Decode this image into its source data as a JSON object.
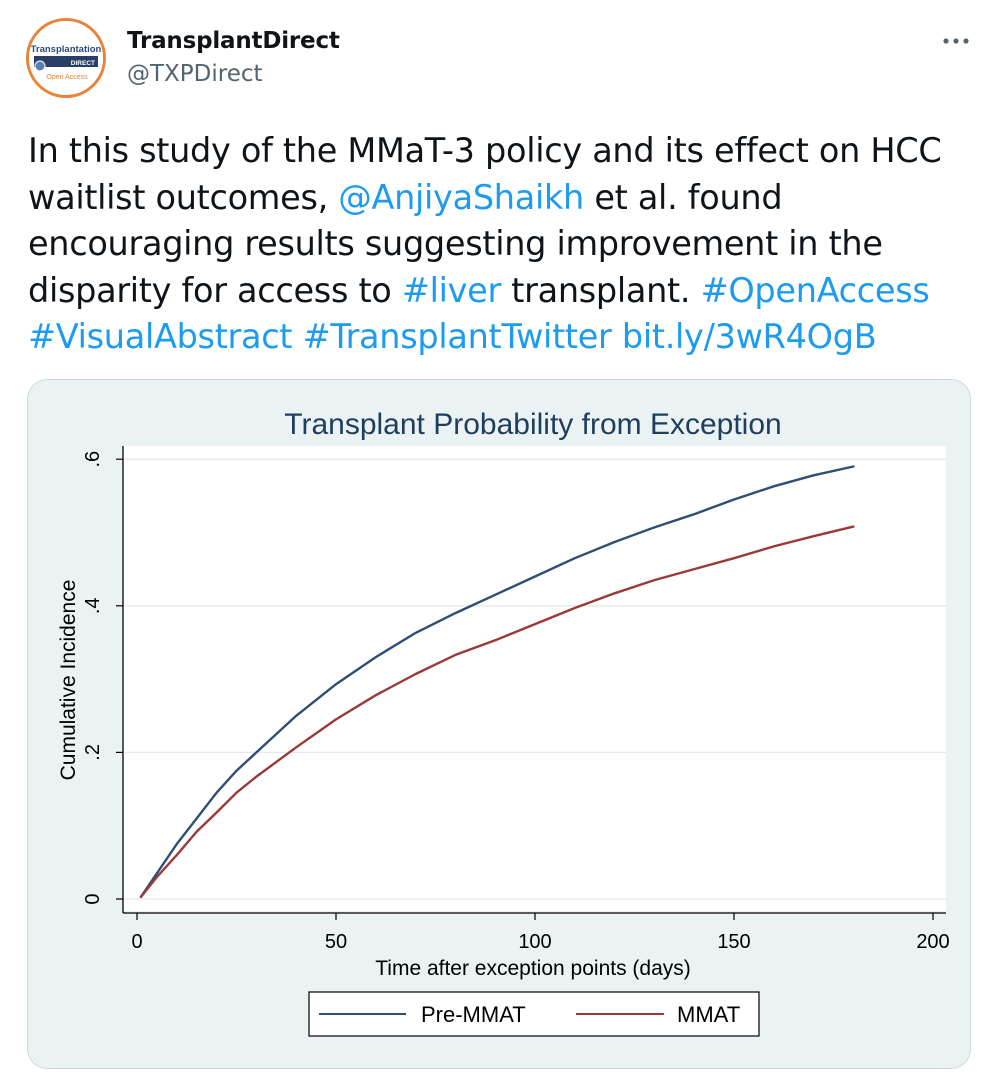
{
  "author": {
    "name": "TransplantDirect",
    "handle": "@TXPDirect",
    "avatar": {
      "line1": "Transplantation",
      "line2": "DIRECT",
      "line3": "Open Access"
    }
  },
  "tweet": {
    "text_1": "In this study of the MMaT-3 policy and its effect on HCC waitlist outcomes, ",
    "mention": "@AnjiyaShaikh",
    "text_2": " et al. found encouraging results suggesting improvement in the disparity for access to ",
    "hashtag_liver": "#liver",
    "text_3": " transplant. ",
    "hashtag_openaccess": "#OpenAccess",
    "hashtag_visualabstract": "#VisualAbstract",
    "hashtag_transplanttwitter": "#TransplantTwitter",
    "link": "bit.ly/3wR4OgB"
  },
  "colors": {
    "link": "#1d9bf0",
    "pre_mmat": "#2e4f73",
    "mmat": "#9b3838",
    "chart_title": "#1f3d5c",
    "avatar_ring": "#e8833a"
  },
  "icons": {
    "more": "more-horizontal-icon"
  },
  "chart_data": {
    "type": "line",
    "title": "Transplant Probability from Exception",
    "xlabel": "Time after exception points (days)",
    "ylabel": "Cumulative Incidence",
    "xlim": [
      0,
      200
    ],
    "ylim": [
      0,
      0.6
    ],
    "x_ticks": [
      0,
      50,
      100,
      150,
      200
    ],
    "x_tick_labels": [
      "0",
      "50",
      "100",
      "150",
      "200"
    ],
    "y_ticks": [
      0,
      0.2,
      0.4,
      0.6
    ],
    "y_tick_labels": [
      "0",
      ".2",
      ".4",
      ".6"
    ],
    "grid": true,
    "legend_position": "bottom",
    "x": [
      1,
      5,
      10,
      15,
      20,
      25,
      30,
      40,
      50,
      60,
      70,
      80,
      90,
      100,
      110,
      120,
      130,
      140,
      150,
      160,
      170,
      180
    ],
    "series": [
      {
        "name": "Pre-MMAT",
        "values": [
          0.003,
          0.035,
          0.075,
          0.11,
          0.145,
          0.175,
          0.2,
          0.25,
          0.293,
          0.33,
          0.363,
          0.39,
          0.415,
          0.44,
          0.465,
          0.487,
          0.507,
          0.525,
          0.545,
          0.563,
          0.578,
          0.59
        ]
      },
      {
        "name": "MMAT",
        "values": [
          0.003,
          0.03,
          0.06,
          0.092,
          0.118,
          0.145,
          0.167,
          0.207,
          0.245,
          0.278,
          0.307,
          0.333,
          0.353,
          0.375,
          0.397,
          0.417,
          0.435,
          0.45,
          0.465,
          0.481,
          0.495,
          0.508
        ]
      }
    ]
  }
}
